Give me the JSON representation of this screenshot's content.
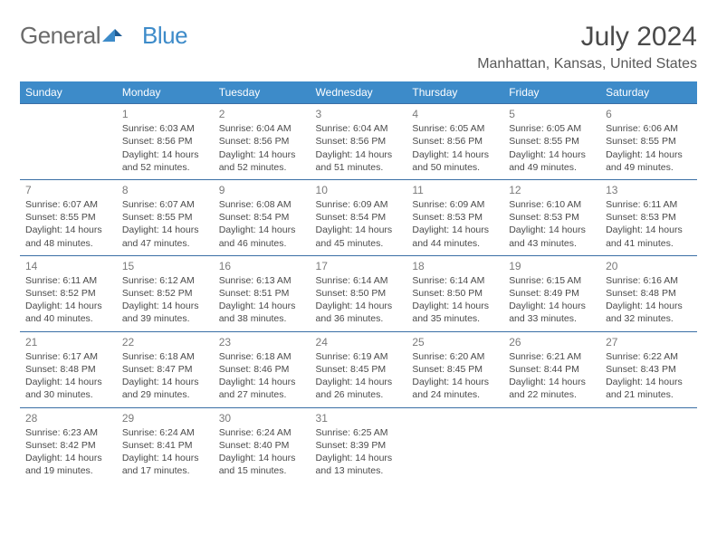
{
  "logo": {
    "part1": "General",
    "part2": "Blue"
  },
  "title": "July 2024",
  "location": "Manhattan, Kansas, United States",
  "dayHeaders": [
    "Sunday",
    "Monday",
    "Tuesday",
    "Wednesday",
    "Thursday",
    "Friday",
    "Saturday"
  ],
  "colors": {
    "header_bg": "#3d8bc9",
    "header_text": "#ffffff",
    "cell_border": "#3a6fa5",
    "text": "#4a4a4a",
    "daynum": "#7a7a7a",
    "logo_gray": "#6b6b6b",
    "logo_blue": "#3d8bc9",
    "background": "#ffffff"
  },
  "typography": {
    "title_fontsize": 30,
    "location_fontsize": 16,
    "dayheader_fontsize": 12,
    "cell_fontsize": 10.5,
    "daynum_fontsize": 12
  },
  "layout": {
    "rows": 5,
    "cols": 7,
    "first_weekday_index": 1,
    "last_day": 31
  },
  "weeks": [
    [
      null,
      {
        "n": "1",
        "sr": "Sunrise: 6:03 AM",
        "ss": "Sunset: 8:56 PM",
        "d1": "Daylight: 14 hours",
        "d2": "and 52 minutes."
      },
      {
        "n": "2",
        "sr": "Sunrise: 6:04 AM",
        "ss": "Sunset: 8:56 PM",
        "d1": "Daylight: 14 hours",
        "d2": "and 52 minutes."
      },
      {
        "n": "3",
        "sr": "Sunrise: 6:04 AM",
        "ss": "Sunset: 8:56 PM",
        "d1": "Daylight: 14 hours",
        "d2": "and 51 minutes."
      },
      {
        "n": "4",
        "sr": "Sunrise: 6:05 AM",
        "ss": "Sunset: 8:56 PM",
        "d1": "Daylight: 14 hours",
        "d2": "and 50 minutes."
      },
      {
        "n": "5",
        "sr": "Sunrise: 6:05 AM",
        "ss": "Sunset: 8:55 PM",
        "d1": "Daylight: 14 hours",
        "d2": "and 49 minutes."
      },
      {
        "n": "6",
        "sr": "Sunrise: 6:06 AM",
        "ss": "Sunset: 8:55 PM",
        "d1": "Daylight: 14 hours",
        "d2": "and 49 minutes."
      }
    ],
    [
      {
        "n": "7",
        "sr": "Sunrise: 6:07 AM",
        "ss": "Sunset: 8:55 PM",
        "d1": "Daylight: 14 hours",
        "d2": "and 48 minutes."
      },
      {
        "n": "8",
        "sr": "Sunrise: 6:07 AM",
        "ss": "Sunset: 8:55 PM",
        "d1": "Daylight: 14 hours",
        "d2": "and 47 minutes."
      },
      {
        "n": "9",
        "sr": "Sunrise: 6:08 AM",
        "ss": "Sunset: 8:54 PM",
        "d1": "Daylight: 14 hours",
        "d2": "and 46 minutes."
      },
      {
        "n": "10",
        "sr": "Sunrise: 6:09 AM",
        "ss": "Sunset: 8:54 PM",
        "d1": "Daylight: 14 hours",
        "d2": "and 45 minutes."
      },
      {
        "n": "11",
        "sr": "Sunrise: 6:09 AM",
        "ss": "Sunset: 8:53 PM",
        "d1": "Daylight: 14 hours",
        "d2": "and 44 minutes."
      },
      {
        "n": "12",
        "sr": "Sunrise: 6:10 AM",
        "ss": "Sunset: 8:53 PM",
        "d1": "Daylight: 14 hours",
        "d2": "and 43 minutes."
      },
      {
        "n": "13",
        "sr": "Sunrise: 6:11 AM",
        "ss": "Sunset: 8:53 PM",
        "d1": "Daylight: 14 hours",
        "d2": "and 41 minutes."
      }
    ],
    [
      {
        "n": "14",
        "sr": "Sunrise: 6:11 AM",
        "ss": "Sunset: 8:52 PM",
        "d1": "Daylight: 14 hours",
        "d2": "and 40 minutes."
      },
      {
        "n": "15",
        "sr": "Sunrise: 6:12 AM",
        "ss": "Sunset: 8:52 PM",
        "d1": "Daylight: 14 hours",
        "d2": "and 39 minutes."
      },
      {
        "n": "16",
        "sr": "Sunrise: 6:13 AM",
        "ss": "Sunset: 8:51 PM",
        "d1": "Daylight: 14 hours",
        "d2": "and 38 minutes."
      },
      {
        "n": "17",
        "sr": "Sunrise: 6:14 AM",
        "ss": "Sunset: 8:50 PM",
        "d1": "Daylight: 14 hours",
        "d2": "and 36 minutes."
      },
      {
        "n": "18",
        "sr": "Sunrise: 6:14 AM",
        "ss": "Sunset: 8:50 PM",
        "d1": "Daylight: 14 hours",
        "d2": "and 35 minutes."
      },
      {
        "n": "19",
        "sr": "Sunrise: 6:15 AM",
        "ss": "Sunset: 8:49 PM",
        "d1": "Daylight: 14 hours",
        "d2": "and 33 minutes."
      },
      {
        "n": "20",
        "sr": "Sunrise: 6:16 AM",
        "ss": "Sunset: 8:48 PM",
        "d1": "Daylight: 14 hours",
        "d2": "and 32 minutes."
      }
    ],
    [
      {
        "n": "21",
        "sr": "Sunrise: 6:17 AM",
        "ss": "Sunset: 8:48 PM",
        "d1": "Daylight: 14 hours",
        "d2": "and 30 minutes."
      },
      {
        "n": "22",
        "sr": "Sunrise: 6:18 AM",
        "ss": "Sunset: 8:47 PM",
        "d1": "Daylight: 14 hours",
        "d2": "and 29 minutes."
      },
      {
        "n": "23",
        "sr": "Sunrise: 6:18 AM",
        "ss": "Sunset: 8:46 PM",
        "d1": "Daylight: 14 hours",
        "d2": "and 27 minutes."
      },
      {
        "n": "24",
        "sr": "Sunrise: 6:19 AM",
        "ss": "Sunset: 8:45 PM",
        "d1": "Daylight: 14 hours",
        "d2": "and 26 minutes."
      },
      {
        "n": "25",
        "sr": "Sunrise: 6:20 AM",
        "ss": "Sunset: 8:45 PM",
        "d1": "Daylight: 14 hours",
        "d2": "and 24 minutes."
      },
      {
        "n": "26",
        "sr": "Sunrise: 6:21 AM",
        "ss": "Sunset: 8:44 PM",
        "d1": "Daylight: 14 hours",
        "d2": "and 22 minutes."
      },
      {
        "n": "27",
        "sr": "Sunrise: 6:22 AM",
        "ss": "Sunset: 8:43 PM",
        "d1": "Daylight: 14 hours",
        "d2": "and 21 minutes."
      }
    ],
    [
      {
        "n": "28",
        "sr": "Sunrise: 6:23 AM",
        "ss": "Sunset: 8:42 PM",
        "d1": "Daylight: 14 hours",
        "d2": "and 19 minutes."
      },
      {
        "n": "29",
        "sr": "Sunrise: 6:24 AM",
        "ss": "Sunset: 8:41 PM",
        "d1": "Daylight: 14 hours",
        "d2": "and 17 minutes."
      },
      {
        "n": "30",
        "sr": "Sunrise: 6:24 AM",
        "ss": "Sunset: 8:40 PM",
        "d1": "Daylight: 14 hours",
        "d2": "and 15 minutes."
      },
      {
        "n": "31",
        "sr": "Sunrise: 6:25 AM",
        "ss": "Sunset: 8:39 PM",
        "d1": "Daylight: 14 hours",
        "d2": "and 13 minutes."
      },
      null,
      null,
      null
    ]
  ]
}
